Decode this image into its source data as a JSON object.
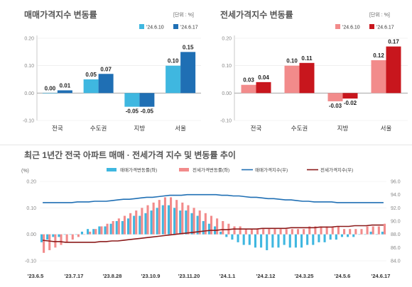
{
  "chart_data": [
    {
      "type": "bar",
      "title": "매매가격지수 변동률",
      "unit": "[단위 : %]",
      "categories": [
        "전국",
        "수도권",
        "지방",
        "서울"
      ],
      "series": [
        {
          "name": "'24.6.10",
          "values": [
            0.0,
            0.05,
            -0.05,
            0.1
          ],
          "color": "#3fb7e0",
          "labels": [
            "0.00",
            "0.05",
            "-0.05",
            "0.10"
          ]
        },
        {
          "name": "'24.6.17",
          "values": [
            0.01,
            0.07,
            -0.05,
            0.15
          ],
          "color": "#1f6fb4",
          "labels": [
            "0.01",
            "0.07",
            "-0.05",
            "0.15"
          ]
        }
      ],
      "ylim": [
        -0.1,
        0.2
      ],
      "yticks": [
        -0.1,
        0.0,
        0.1,
        0.2
      ],
      "ytick_labels": [
        "-0.10",
        "0.00",
        "0.10",
        "0.20"
      ],
      "legend": "top-right"
    },
    {
      "type": "bar",
      "title": "전세가격지수 변동률",
      "unit": "[단위 : %]",
      "categories": [
        "전국",
        "수도권",
        "지방",
        "서울"
      ],
      "series": [
        {
          "name": "'24.6.10",
          "values": [
            0.03,
            0.1,
            -0.03,
            0.12
          ],
          "color": "#f28b8b",
          "labels": [
            "0.03",
            "0.10",
            "-0.03",
            "0.12"
          ]
        },
        {
          "name": "'24.6.17",
          "values": [
            0.04,
            0.11,
            -0.02,
            0.17
          ],
          "color": "#c8161d",
          "labels": [
            "0.04",
            "0.11",
            "-0.02",
            "0.17"
          ]
        }
      ],
      "ylim": [
        -0.1,
        0.2
      ],
      "yticks": [
        -0.1,
        0.0,
        0.1,
        0.2
      ],
      "ytick_labels": [
        "-0.10",
        "0.00",
        "0.10",
        "0.20"
      ],
      "legend": "top-right"
    },
    {
      "type": "bar+line",
      "title": "최근 1년간 전국 아파트 매매 · 전세가격 지수 및 변동률 추이",
      "ylabel_left": "(%)",
      "ylim_left": [
        -0.1,
        0.2
      ],
      "yticks_left": [
        "-0.10",
        "0.00",
        "0.10",
        "0.20"
      ],
      "ylim_right": [
        84.0,
        96.0
      ],
      "yticks_right": [
        "84.0",
        "86.0",
        "88.0",
        "90.0",
        "92.0",
        "94.0",
        "96.0"
      ],
      "x_labels": [
        "'23.6.5",
        "'23.7.17",
        "'23.8.28",
        "'23.10.9",
        "'23.11.20",
        "'24.1.1",
        "'24.2.12",
        "'24.3.25",
        "'24.5.6",
        "'24.6.17"
      ],
      "legend": [
        "매매가격변동률(좌)",
        "전세가격변동률(좌)",
        "매매가격지수(우)",
        "전세가격지수(우)"
      ],
      "colors": {
        "sale_rate": "#3fb7e0",
        "jeonse_rate": "#f28b8b",
        "sale_index": "#1f6fb4",
        "jeonse_index": "#8b1a1a"
      },
      "sale_rate": [
        -0.03,
        -0.02,
        -0.01,
        -0.01,
        0.0,
        0.0,
        0.0,
        0.01,
        0.02,
        0.02,
        0.03,
        0.03,
        0.04,
        0.05,
        0.05,
        0.06,
        0.07,
        0.07,
        0.08,
        0.09,
        0.1,
        0.11,
        0.11,
        0.1,
        0.09,
        0.09,
        0.08,
        0.07,
        0.05,
        0.04,
        0.03,
        0.01,
        -0.01,
        -0.02,
        -0.03,
        -0.04,
        -0.04,
        -0.05,
        -0.05,
        -0.06,
        -0.05,
        -0.05,
        -0.04,
        -0.05,
        -0.05,
        -0.05,
        -0.04,
        -0.04,
        -0.03,
        -0.03,
        -0.02,
        -0.02,
        -0.01,
        -0.01,
        -0.01,
        0.0,
        0.0,
        0.01,
        0.0,
        0.01
      ],
      "jeonse_rate": [
        -0.07,
        -0.06,
        -0.05,
        -0.04,
        -0.03,
        -0.02,
        -0.01,
        0.0,
        0.01,
        0.02,
        0.03,
        0.04,
        0.05,
        0.06,
        0.07,
        0.08,
        0.09,
        0.1,
        0.11,
        0.12,
        0.13,
        0.14,
        0.14,
        0.13,
        0.12,
        0.11,
        0.1,
        0.09,
        0.08,
        0.07,
        0.06,
        0.05,
        0.04,
        0.03,
        0.03,
        0.02,
        0.02,
        0.02,
        0.02,
        0.02,
        0.02,
        0.02,
        0.02,
        0.02,
        0.02,
        0.02,
        0.03,
        0.03,
        0.03,
        0.03,
        0.03,
        0.03,
        0.02,
        0.02,
        0.02,
        0.02,
        0.03,
        0.03,
        0.03,
        0.04
      ],
      "sale_index": [
        92.8,
        92.8,
        92.8,
        92.8,
        92.8,
        92.8,
        92.9,
        92.9,
        92.9,
        93.0,
        93.0,
        93.0,
        93.1,
        93.2,
        93.3,
        93.3,
        93.4,
        93.5,
        93.6,
        93.6,
        93.7,
        93.8,
        93.9,
        93.9,
        93.9,
        94.0,
        94.0,
        94.0,
        94.0,
        94.0,
        94.0,
        93.9,
        93.9,
        93.8,
        93.8,
        93.7,
        93.6,
        93.6,
        93.5,
        93.4,
        93.4,
        93.3,
        93.2,
        93.2,
        93.1,
        93.0,
        93.0,
        92.9,
        92.9,
        92.9,
        92.9,
        92.8,
        92.8,
        92.8,
        92.8,
        92.8,
        92.8,
        92.8,
        92.8,
        92.8
      ],
      "jeonse_index": [
        87.1,
        87.0,
        86.9,
        86.9,
        86.8,
        86.8,
        86.8,
        86.8,
        86.8,
        86.8,
        86.9,
        86.9,
        87.0,
        87.0,
        87.1,
        87.2,
        87.3,
        87.4,
        87.5,
        87.6,
        87.7,
        87.8,
        87.9,
        88.0,
        88.1,
        88.2,
        88.3,
        88.4,
        88.5,
        88.6,
        88.6,
        88.7,
        88.7,
        88.8,
        88.8,
        88.8,
        88.8,
        88.8,
        88.9,
        88.9,
        88.9,
        88.9,
        88.9,
        89.0,
        89.0,
        89.0,
        89.0,
        89.0,
        89.1,
        89.1,
        89.1,
        89.2,
        89.2,
        89.2,
        89.3,
        89.3,
        89.3,
        89.4,
        89.4,
        89.4
      ]
    }
  ]
}
